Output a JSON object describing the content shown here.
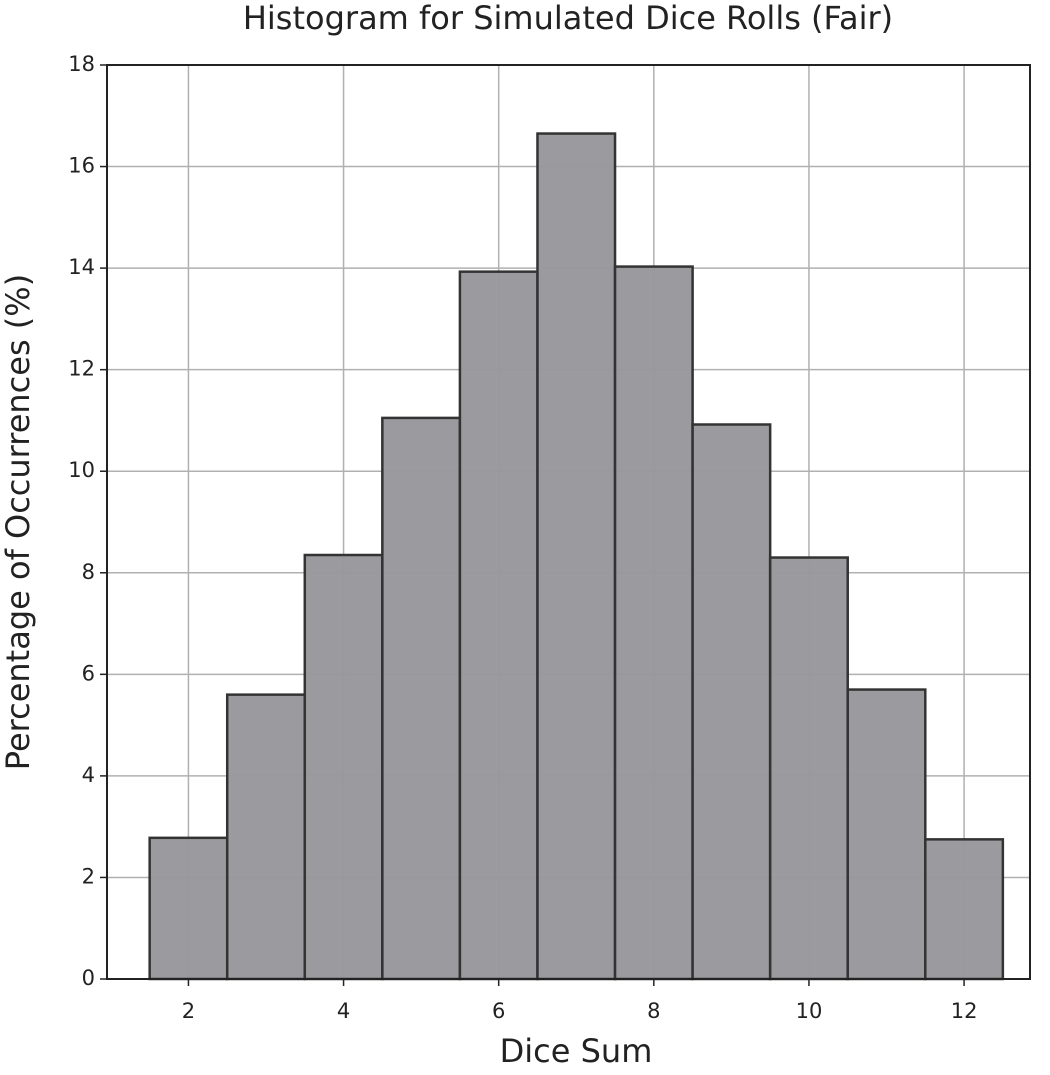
{
  "chart_data": {
    "type": "histogram",
    "title": "Histogram for Simulated Dice Rolls (Fair)",
    "x_label": "Dice Sum",
    "y_label": "Percentage of Occurrences (%)",
    "bins": [
      1.5,
      2.5,
      3.5,
      4.5,
      5.5,
      6.5,
      7.5,
      8.5,
      9.5,
      10.5,
      11.5,
      12.5
    ],
    "values": [
      2.78,
      5.6,
      8.35,
      11.05,
      13.93,
      16.65,
      14.03,
      10.92,
      8.3,
      5.7,
      2.75
    ],
    "color": "#98989c",
    "edge_color": "#333333",
    "xlim": [
      0.95,
      12.85
    ],
    "xticks": [
      2,
      4,
      6,
      8,
      10,
      12
    ],
    "ylim": [
      0,
      18
    ],
    "yticks": [
      0,
      2,
      4,
      6,
      8,
      10,
      12,
      14,
      16,
      18
    ],
    "grid": true
  }
}
